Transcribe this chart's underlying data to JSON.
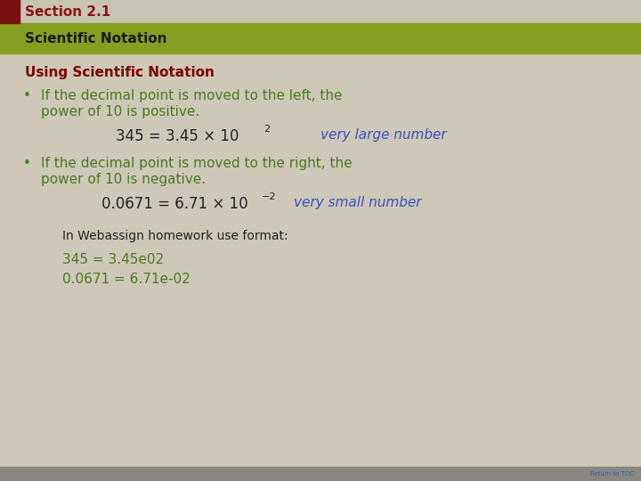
{
  "section_label": "Section 2.1",
  "subtitle": "Scientific Notation",
  "heading": "Using Scientific Notation",
  "bullet1_line1": "If the decimal point is moved to the left, the",
  "bullet1_line2": "power of 10 is positive.",
  "eq1_left": "345 = 3.45 × 10",
  "eq1_exp": "2",
  "eq1_note": "very large number",
  "bullet2_line1": "If the decimal point is moved to the right, the",
  "bullet2_line2": "power of 10 is negative.",
  "eq2_left": "0.0671 = 6.71 × 10",
  "eq2_exp": "−2",
  "eq2_note": "very small number",
  "webassign_label": "In Webassign homework use format:",
  "webassign_line1": "345 = 3.45e02",
  "webassign_line2": "0.0671 = 6.71e-02",
  "return_toc": "Return to TOC",
  "bg_color": "#cdc8b8",
  "top_bar_color": "#c8c4b4",
  "dark_red_sq_color": "#7a1010",
  "section_text_color": "#8b1515",
  "green_bar_color": "#85a020",
  "subtitle_text_color": "#1a1a1a",
  "heading_color": "#7b0000",
  "bullet_text_color": "#4a7a20",
  "eq_text_color": "#222222",
  "note_color": "#3355bb",
  "webassign_label_color": "#222222",
  "webassign_color": "#4a7a20",
  "footer_color": "#888880",
  "return_toc_color": "#3355bb",
  "figwidth": 7.2,
  "figheight": 5.4
}
